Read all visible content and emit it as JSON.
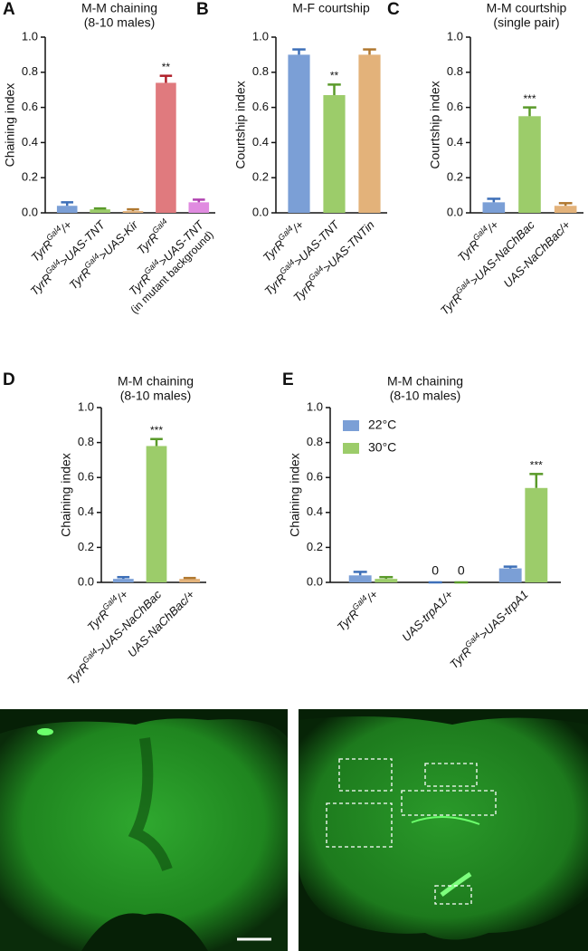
{
  "chart_data": [
    {
      "type": "bar",
      "panel": "A",
      "title": [
        "M-M chaining",
        "(8-10 males)"
      ],
      "ylabel": "Chaining index",
      "categories": [
        [
          [
            "TyrR",
            "Gal4",
            "/+"
          ]
        ],
        [
          [
            "TyrR",
            "Gal4",
            ">UAS-TNT"
          ]
        ],
        [
          [
            "TyrR",
            "Gal4",
            ">UAS-Kir"
          ]
        ],
        [
          [
            "TyrR",
            "Gal4"
          ]
        ],
        [
          [
            "TyrR",
            "Gal4",
            ">UAS-TNT"
          ],
          [
            "(in mutant background)"
          ]
        ]
      ],
      "values": [
        0.04,
        0.02,
        0.01,
        0.74,
        0.06
      ],
      "errors": [
        0.02,
        0.005,
        0.01,
        0.04,
        0.015
      ],
      "colors": [
        "#7b9fd6",
        "#9ccc6a",
        "#e3b27a",
        "#e07a7e",
        "#e08be0"
      ],
      "error_colors": [
        "#3d6fb8",
        "#5a9a2a",
        "#b07830",
        "#b0202a",
        "#b040b0"
      ],
      "ylim": [
        0,
        1
      ],
      "yticks": [
        {
          "value": 0,
          "label": "0.0"
        },
        0.2,
        0.4,
        0.6,
        0.8,
        {
          "value": 1,
          "label": "1.0"
        }
      ],
      "annotations": [
        {
          "index": 3,
          "text": "**"
        }
      ]
    },
    {
      "type": "bar",
      "panel": "B",
      "title": [
        "M-F courtship"
      ],
      "ylabel": "Courtship index",
      "categories": [
        [
          [
            "TyrR",
            "Gal4",
            "/+"
          ]
        ],
        [
          [
            "TyrR",
            "Gal4",
            ">UAS-TNT"
          ]
        ],
        [
          [
            "TyrR",
            "Gal4",
            ">UAS-TNTin"
          ]
        ]
      ],
      "values": [
        0.9,
        0.67,
        0.9
      ],
      "errors": [
        0.03,
        0.06,
        0.03
      ],
      "colors": [
        "#7b9fd6",
        "#9ccc6a",
        "#e3b27a"
      ],
      "error_colors": [
        "#3d6fb8",
        "#5a9a2a",
        "#b07830"
      ],
      "ylim": [
        0,
        1
      ],
      "yticks": [
        {
          "value": 0,
          "label": "0.0"
        },
        0.2,
        0.4,
        0.6,
        0.8,
        {
          "value": 1,
          "label": "1.0"
        }
      ],
      "annotations": [
        {
          "index": 1,
          "text": "**"
        }
      ]
    },
    {
      "type": "bar",
      "panel": "C",
      "title": [
        "M-M courtship",
        "(single pair)"
      ],
      "ylabel": "Courtship index",
      "categories": [
        [
          [
            "TyrR",
            "Gal4",
            "/+"
          ]
        ],
        [
          [
            "TyrR",
            "Gal4",
            ">UAS-NaChBac"
          ]
        ],
        [
          [
            "UAS-NaChBac/+"
          ]
        ]
      ],
      "values": [
        0.06,
        0.55,
        0.04
      ],
      "errors": [
        0.02,
        0.05,
        0.015
      ],
      "colors": [
        "#7b9fd6",
        "#9ccc6a",
        "#e3b27a"
      ],
      "error_colors": [
        "#3d6fb8",
        "#5a9a2a",
        "#b07830"
      ],
      "ylim": [
        0,
        1
      ],
      "yticks": [
        {
          "value": 0,
          "label": "0.0"
        },
        0.2,
        0.4,
        0.6,
        0.8,
        {
          "value": 1,
          "label": "1.0"
        }
      ],
      "annotations": [
        {
          "index": 1,
          "text": "***"
        }
      ]
    },
    {
      "type": "bar",
      "panel": "D",
      "title": [
        "M-M chaining",
        "(8-10 males)"
      ],
      "ylabel": "Chaining index",
      "categories": [
        [
          [
            "TyrR",
            "Gal4",
            "/+"
          ]
        ],
        [
          [
            "TyrR",
            "Gal4",
            ">UAS-NaChBac"
          ]
        ],
        [
          [
            "UAS-NaChBac/+"
          ]
        ]
      ],
      "values": [
        0.02,
        0.78,
        0.02
      ],
      "errors": [
        0.01,
        0.04,
        0.005
      ],
      "colors": [
        "#7b9fd6",
        "#9ccc6a",
        "#e3b27a"
      ],
      "error_colors": [
        "#3d6fb8",
        "#5a9a2a",
        "#b07830"
      ],
      "ylim": [
        0,
        1
      ],
      "yticks": [
        {
          "value": 0,
          "label": "0.0"
        },
        0.2,
        0.4,
        0.6,
        0.8,
        {
          "value": 1,
          "label": "1.0"
        }
      ],
      "annotations": [
        {
          "index": 1,
          "text": "***"
        }
      ]
    },
    {
      "type": "grouped_bar",
      "panel": "E",
      "title": [
        "M-M chaining",
        "(8-10 males)"
      ],
      "ylabel": "Chaining index",
      "categories": [
        [
          [
            "TyrR",
            "Gal4",
            "/+"
          ]
        ],
        [
          [
            "UAS-trpA1/+"
          ]
        ],
        [
          [
            "TyrR",
            "Gal4",
            ">UAS-trpA1"
          ]
        ]
      ],
      "series": [
        {
          "name": "22°C",
          "color": "#7b9fd6",
          "error_color": "#3d6fb8",
          "values": [
            0.04,
            0,
            0.08
          ],
          "errors": [
            0.02,
            0,
            0.01
          ],
          "value_labels": [
            null,
            "0",
            null
          ]
        },
        {
          "name": "30°C",
          "color": "#9ccc6a",
          "error_color": "#5a9a2a",
          "values": [
            0.02,
            0,
            0.54
          ],
          "errors": [
            0.01,
            0,
            0.08
          ],
          "value_labels": [
            null,
            "0",
            null
          ]
        }
      ],
      "legend": "upper left",
      "ylim": [
        0,
        1
      ],
      "yticks": [
        {
          "value": 0,
          "label": "0.0"
        },
        0.2,
        0.4,
        0.6,
        0.8,
        {
          "value": 1,
          "label": "1.0"
        }
      ],
      "annotations": [
        {
          "series": 1,
          "index": 2,
          "text": "***"
        }
      ]
    }
  ]
}
